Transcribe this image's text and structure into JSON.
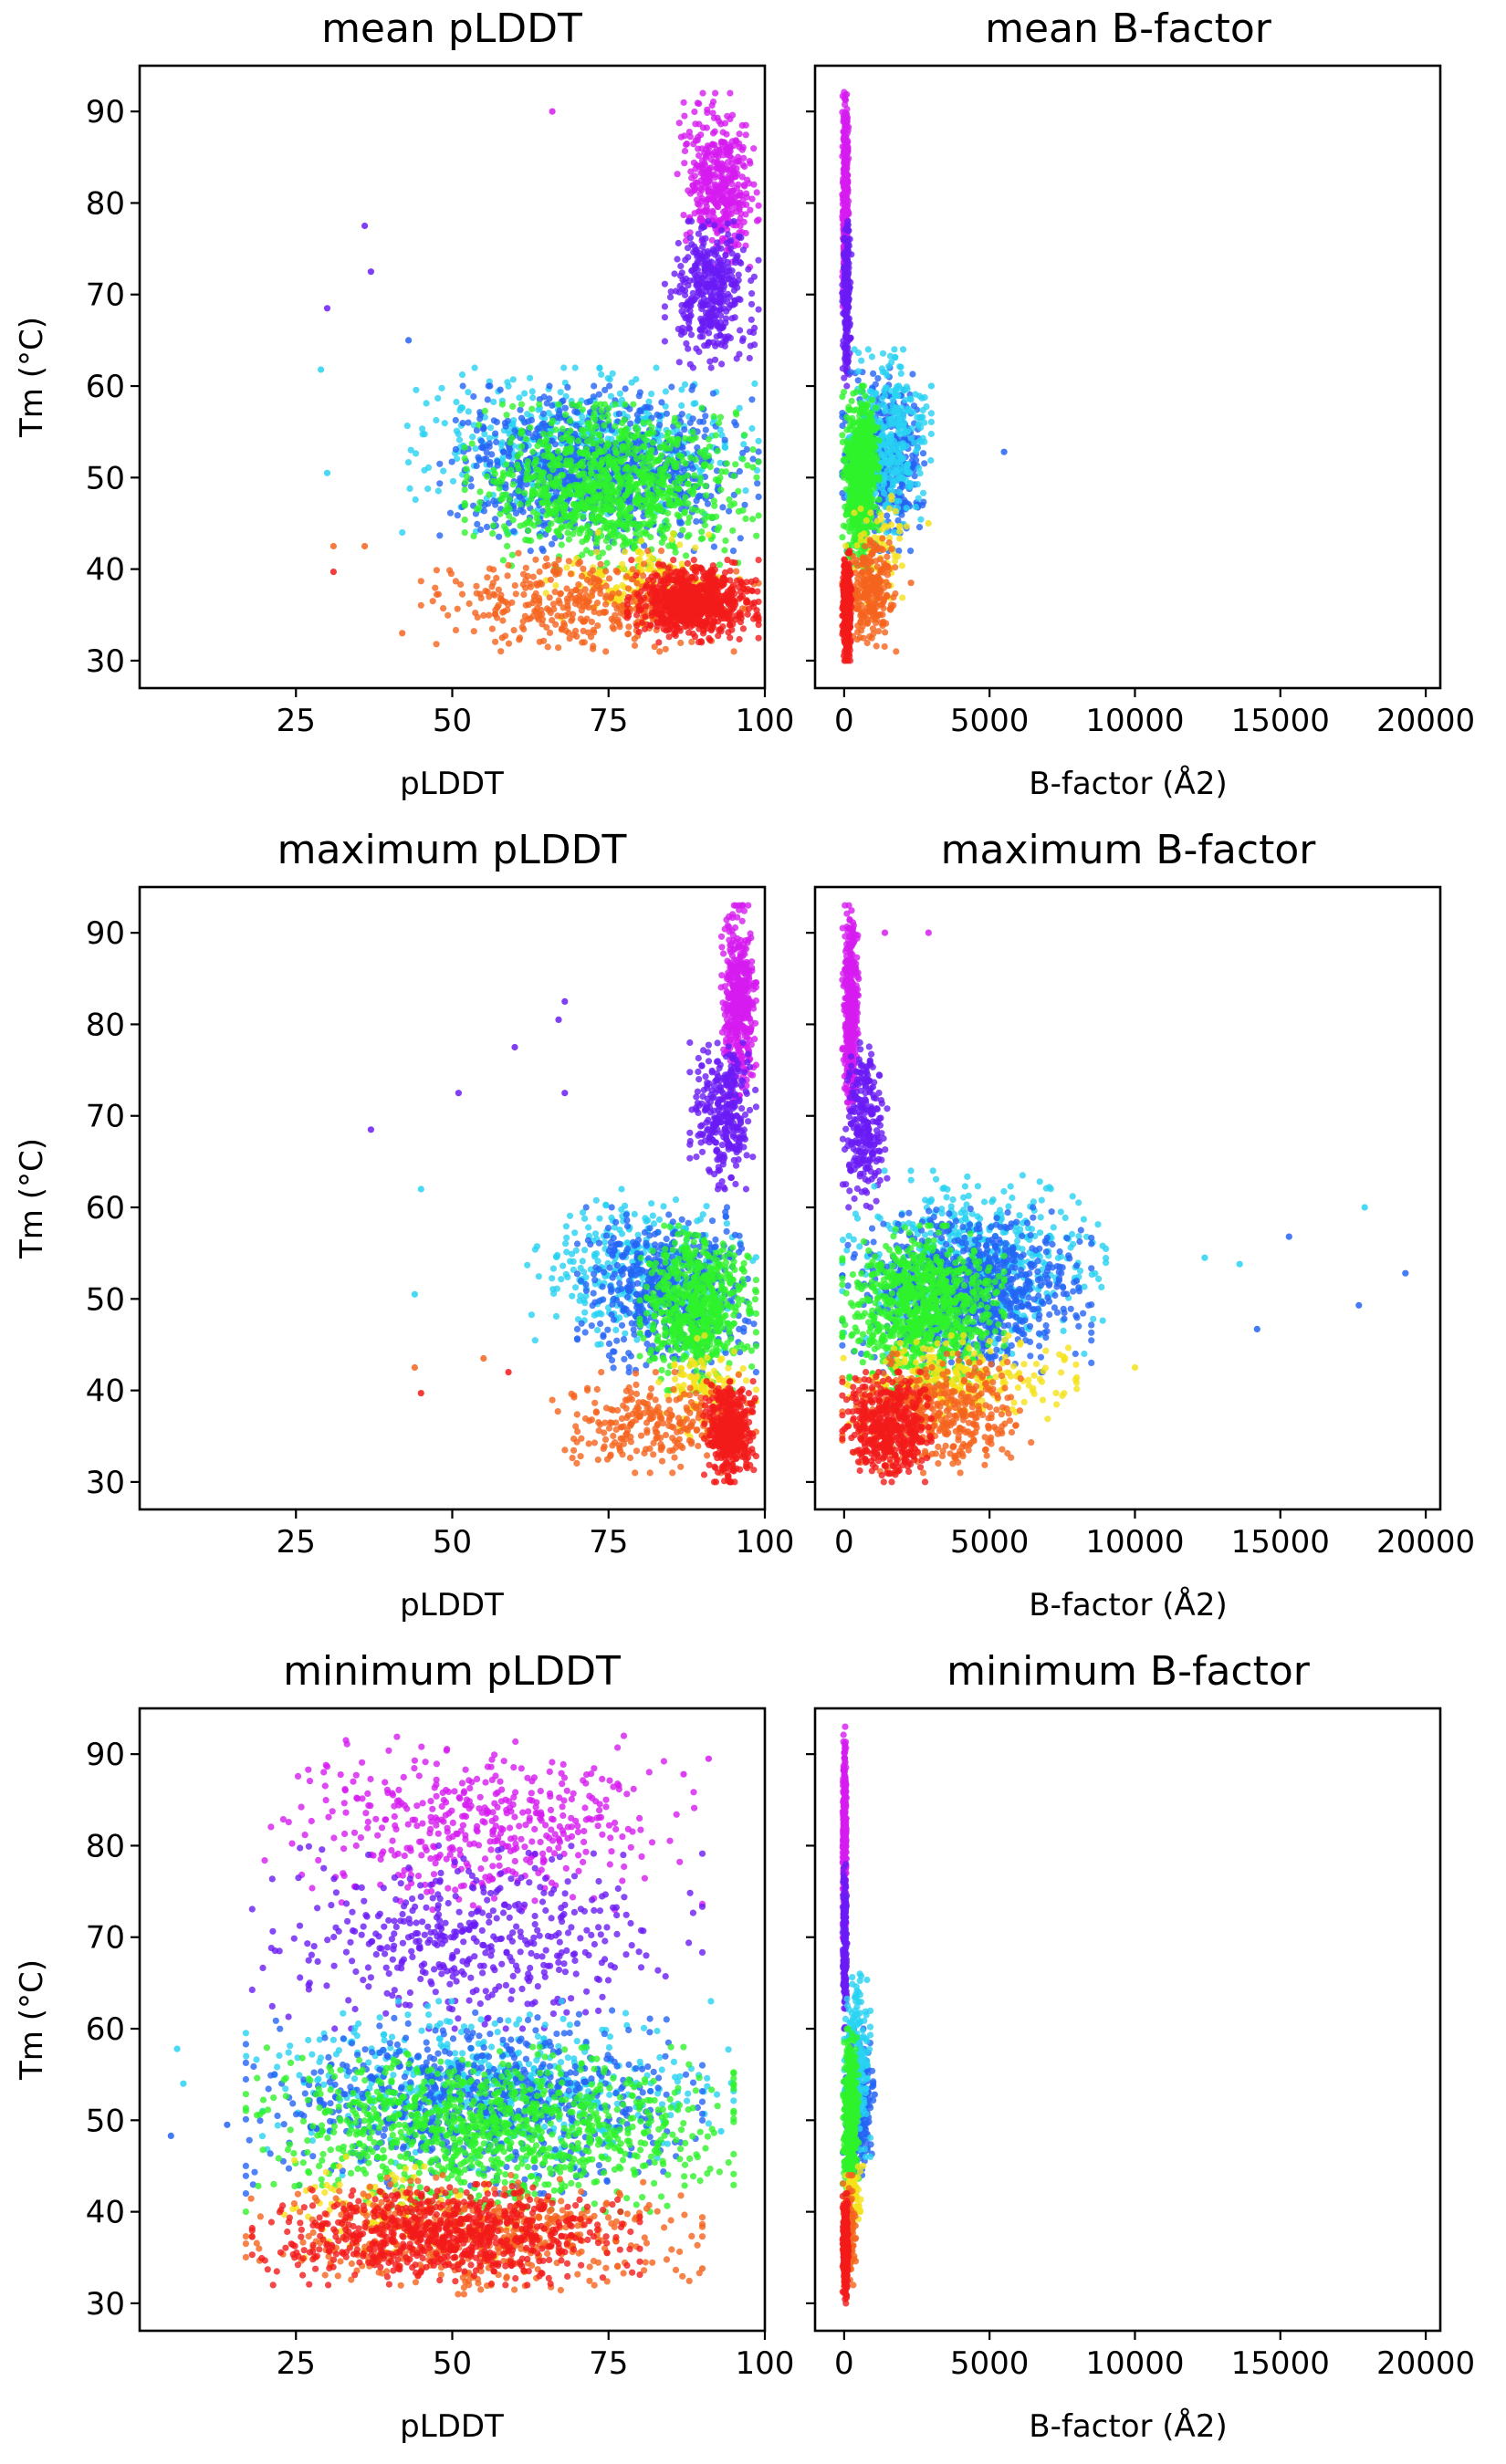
{
  "figure": {
    "colors": {
      "magenta": "#d61cf0",
      "violet": "#6a1cf5",
      "blue": "#2464f5",
      "cyan": "#28d2f2",
      "green": "#2ef22b",
      "yellow": "#f5e21a",
      "orange": "#f5641e",
      "red": "#f21a1a"
    }
  },
  "chart_data": [
    {
      "type": "scatter",
      "title": "mean pLDDT",
      "xlabel": "pLDDT",
      "ylabel": "Tm (°C)",
      "xlim": [
        0,
        100
      ],
      "ylim": [
        27,
        95
      ],
      "xticks": [
        25,
        50,
        75,
        100
      ],
      "yticks": [
        30,
        40,
        50,
        60,
        70,
        80,
        90
      ],
      "grid": false,
      "clusters": [
        {
          "color": "magenta",
          "count": 420,
          "x": [
            86,
            99
          ],
          "y": [
            73,
            92
          ]
        },
        {
          "color": "violet",
          "count": 380,
          "x": [
            84,
            99
          ],
          "y": [
            62,
            78
          ]
        },
        {
          "color": "cyan",
          "count": 500,
          "x": [
            42,
            99
          ],
          "y": [
            44,
            62
          ]
        },
        {
          "color": "blue",
          "count": 900,
          "x": [
            48,
            99
          ],
          "y": [
            42,
            60
          ]
        },
        {
          "color": "green",
          "count": 950,
          "x": [
            52,
            99
          ],
          "y": [
            40,
            58
          ]
        },
        {
          "color": "yellow",
          "count": 160,
          "x": [
            65,
            96
          ],
          "y": [
            34,
            44
          ]
        },
        {
          "color": "orange",
          "count": 420,
          "x": [
            45,
            99
          ],
          "y": [
            31,
            42
          ]
        },
        {
          "color": "red",
          "count": 750,
          "x": [
            78,
            99
          ],
          "y": [
            32,
            41
          ]
        }
      ],
      "outliers": [
        {
          "x": 30,
          "y": 68.5,
          "color": "violet"
        },
        {
          "x": 36,
          "y": 77.5,
          "color": "violet"
        },
        {
          "x": 37,
          "y": 72.5,
          "color": "violet"
        },
        {
          "x": 29,
          "y": 61.8,
          "color": "cyan"
        },
        {
          "x": 30,
          "y": 50.5,
          "color": "cyan"
        },
        {
          "x": 31,
          "y": 42.5,
          "color": "orange"
        },
        {
          "x": 31,
          "y": 39.7,
          "color": "red"
        },
        {
          "x": 36,
          "y": 42.5,
          "color": "orange"
        },
        {
          "x": 42,
          "y": 33,
          "color": "orange"
        },
        {
          "x": 43,
          "y": 65,
          "color": "blue"
        },
        {
          "x": 66,
          "y": 90,
          "color": "magenta"
        },
        {
          "x": 58,
          "y": 32.5,
          "color": "orange"
        }
      ]
    },
    {
      "type": "scatter",
      "title": "mean B-factor",
      "xlabel": "B-factor (Å2)",
      "ylabel": "",
      "xlim": [
        -1000,
        20500
      ],
      "ylim": [
        27,
        95
      ],
      "xticks": [
        0,
        5000,
        10000,
        15000,
        20000
      ],
      "yticks": [
        30,
        40,
        50,
        60,
        70,
        80,
        90
      ],
      "grid": false,
      "clusters": [
        {
          "color": "magenta",
          "count": 380,
          "x": [
            -60,
            150
          ],
          "y": [
            68,
            93
          ]
        },
        {
          "color": "violet",
          "count": 200,
          "x": [
            -60,
            250
          ],
          "y": [
            60,
            78
          ]
        },
        {
          "color": "blue",
          "count": 450,
          "x": [
            -60,
            2800
          ],
          "y": [
            42,
            62
          ]
        },
        {
          "color": "cyan",
          "count": 350,
          "x": [
            -60,
            3000
          ],
          "y": [
            44,
            64
          ]
        },
        {
          "color": "green",
          "count": 700,
          "x": [
            -60,
            1200
          ],
          "y": [
            40,
            60
          ]
        },
        {
          "color": "yellow",
          "count": 60,
          "x": [
            -60,
            2500
          ],
          "y": [
            36,
            48
          ]
        },
        {
          "color": "orange",
          "count": 250,
          "x": [
            -60,
            1800
          ],
          "y": [
            31,
            44
          ]
        },
        {
          "color": "red",
          "count": 420,
          "x": [
            -60,
            250
          ],
          "y": [
            30,
            42
          ]
        }
      ],
      "outliers": [
        {
          "x": 5500,
          "y": 52.8,
          "color": "blue"
        },
        {
          "x": 3000,
          "y": 60,
          "color": "cyan"
        },
        {
          "x": 2300,
          "y": 38.5,
          "color": "orange"
        },
        {
          "x": 2900,
          "y": 45,
          "color": "yellow"
        }
      ]
    },
    {
      "type": "scatter",
      "title": "maximum pLDDT",
      "xlabel": "pLDDT",
      "ylabel": "Tm (°C)",
      "xlim": [
        0,
        100
      ],
      "ylim": [
        27,
        95
      ],
      "xticks": [
        25,
        50,
        75,
        100
      ],
      "yticks": [
        30,
        40,
        50,
        60,
        70,
        80,
        90
      ],
      "grid": false,
      "clusters": [
        {
          "color": "magenta",
          "count": 420,
          "x": [
            93,
            98.6
          ],
          "y": [
            72,
            93
          ]
        },
        {
          "color": "violet",
          "count": 300,
          "x": [
            88,
            98.6
          ],
          "y": [
            62,
            78
          ]
        },
        {
          "color": "cyan",
          "count": 350,
          "x": [
            62,
            98.6
          ],
          "y": [
            44,
            62
          ]
        },
        {
          "color": "blue",
          "count": 550,
          "x": [
            70,
            98.6
          ],
          "y": [
            42,
            60
          ]
        },
        {
          "color": "green",
          "count": 600,
          "x": [
            80,
            98.6
          ],
          "y": [
            40,
            58
          ]
        },
        {
          "color": "yellow",
          "count": 100,
          "x": [
            82,
            98.6
          ],
          "y": [
            34,
            46
          ]
        },
        {
          "color": "orange",
          "count": 250,
          "x": [
            66,
            98.6
          ],
          "y": [
            31,
            42
          ]
        },
        {
          "color": "red",
          "count": 450,
          "x": [
            90,
            98.6
          ],
          "y": [
            30,
            41
          ]
        }
      ],
      "outliers": [
        {
          "x": 37,
          "y": 68.5,
          "color": "violet"
        },
        {
          "x": 45,
          "y": 62,
          "color": "cyan"
        },
        {
          "x": 44,
          "y": 50.5,
          "color": "cyan"
        },
        {
          "x": 44,
          "y": 42.5,
          "color": "orange"
        },
        {
          "x": 45,
          "y": 39.7,
          "color": "red"
        },
        {
          "x": 51,
          "y": 72.5,
          "color": "violet"
        },
        {
          "x": 60,
          "y": 77.5,
          "color": "violet"
        },
        {
          "x": 67,
          "y": 80.5,
          "color": "violet"
        },
        {
          "x": 68,
          "y": 82.5,
          "color": "violet"
        },
        {
          "x": 68,
          "y": 72.5,
          "color": "violet"
        },
        {
          "x": 55,
          "y": 43.5,
          "color": "orange"
        },
        {
          "x": 59,
          "y": 42,
          "color": "red"
        }
      ]
    },
    {
      "type": "scatter",
      "title": "maximum B-factor",
      "xlabel": "B-factor (Å2)",
      "ylabel": "",
      "xlim": [
        -1000,
        20500
      ],
      "ylim": [
        27,
        95
      ],
      "xticks": [
        0,
        5000,
        10000,
        15000,
        20000
      ],
      "yticks": [
        30,
        40,
        50,
        60,
        70,
        80,
        90
      ],
      "grid": false,
      "clusters": [
        {
          "color": "magenta",
          "count": 380,
          "x": [
            -60,
            500
          ],
          "y": [
            70,
            93
          ]
        },
        {
          "color": "violet",
          "count": 250,
          "x": [
            -60,
            1500
          ],
          "y": [
            60,
            78
          ]
        },
        {
          "color": "cyan",
          "count": 550,
          "x": [
            -60,
            9000
          ],
          "y": [
            44,
            64
          ]
        },
        {
          "color": "blue",
          "count": 850,
          "x": [
            -60,
            8500
          ],
          "y": [
            42,
            60
          ]
        },
        {
          "color": "green",
          "count": 850,
          "x": [
            -60,
            5500
          ],
          "y": [
            40,
            58
          ]
        },
        {
          "color": "yellow",
          "count": 250,
          "x": [
            -60,
            8000
          ],
          "y": [
            36,
            46
          ]
        },
        {
          "color": "orange",
          "count": 400,
          "x": [
            -60,
            6500
          ],
          "y": [
            31,
            44
          ]
        },
        {
          "color": "red",
          "count": 450,
          "x": [
            -60,
            3000
          ],
          "y": [
            30,
            42
          ]
        }
      ],
      "outliers": [
        {
          "x": 1400,
          "y": 90,
          "color": "magenta"
        },
        {
          "x": 2900,
          "y": 90,
          "color": "magenta"
        },
        {
          "x": 14200,
          "y": 46.7,
          "color": "blue"
        },
        {
          "x": 15300,
          "y": 56.8,
          "color": "blue"
        },
        {
          "x": 17700,
          "y": 49.3,
          "color": "blue"
        },
        {
          "x": 17900,
          "y": 60,
          "color": "cyan"
        },
        {
          "x": 19300,
          "y": 52.8,
          "color": "blue"
        },
        {
          "x": 10000,
          "y": 42.5,
          "color": "yellow"
        },
        {
          "x": 12400,
          "y": 54.5,
          "color": "cyan"
        },
        {
          "x": 13600,
          "y": 53.8,
          "color": "cyan"
        }
      ]
    },
    {
      "type": "scatter",
      "title": "minimum pLDDT",
      "xlabel": "pLDDT",
      "ylabel": "Tm (°C)",
      "xlim": [
        0,
        100
      ],
      "ylim": [
        27,
        95
      ],
      "xticks": [
        25,
        50,
        75,
        100
      ],
      "yticks": [
        30,
        40,
        50,
        60,
        70,
        80,
        90
      ],
      "grid": false,
      "clusters": [
        {
          "color": "magenta",
          "count": 450,
          "x": [
            20,
            90
          ],
          "y": [
            73,
            92
          ]
        },
        {
          "color": "violet",
          "count": 450,
          "x": [
            18,
            90
          ],
          "y": [
            60,
            80
          ]
        },
        {
          "color": "cyan",
          "count": 550,
          "x": [
            17,
            95
          ],
          "y": [
            44,
            63
          ]
        },
        {
          "color": "blue",
          "count": 750,
          "x": [
            17,
            90
          ],
          "y": [
            42,
            62
          ]
        },
        {
          "color": "green",
          "count": 1000,
          "x": [
            17,
            95
          ],
          "y": [
            40,
            58
          ]
        },
        {
          "color": "yellow",
          "count": 100,
          "x": [
            18,
            60
          ],
          "y": [
            35,
            46
          ]
        },
        {
          "color": "orange",
          "count": 500,
          "x": [
            17,
            90
          ],
          "y": [
            31,
            44
          ]
        },
        {
          "color": "red",
          "count": 750,
          "x": [
            18,
            80
          ],
          "y": [
            32,
            43
          ]
        }
      ],
      "outliers": [
        {
          "x": 5,
          "y": 48.3,
          "color": "blue"
        },
        {
          "x": 6,
          "y": 57.8,
          "color": "cyan"
        },
        {
          "x": 7,
          "y": 54,
          "color": "cyan"
        },
        {
          "x": 14,
          "y": 49.5,
          "color": "blue"
        },
        {
          "x": 90,
          "y": 33.8,
          "color": "orange"
        },
        {
          "x": 91,
          "y": 89.5,
          "color": "magenta"
        },
        {
          "x": 87,
          "y": 87.8,
          "color": "magenta"
        },
        {
          "x": 93,
          "y": 48.8,
          "color": "cyan"
        }
      ]
    },
    {
      "type": "scatter",
      "title": "minimum B-factor",
      "xlabel": "B-factor (Å2)",
      "ylabel": "",
      "xlim": [
        -1000,
        20500
      ],
      "ylim": [
        27,
        95
      ],
      "xticks": [
        0,
        5000,
        10000,
        15000,
        20000
      ],
      "yticks": [
        30,
        40,
        50,
        60,
        70,
        80,
        90
      ],
      "grid": false,
      "clusters": [
        {
          "color": "magenta",
          "count": 380,
          "x": [
            -50,
            80
          ],
          "y": [
            68,
            93
          ]
        },
        {
          "color": "violet",
          "count": 180,
          "x": [
            -50,
            100
          ],
          "y": [
            60,
            78
          ]
        },
        {
          "color": "blue",
          "count": 260,
          "x": [
            -50,
            1000
          ],
          "y": [
            44,
            60
          ]
        },
        {
          "color": "cyan",
          "count": 200,
          "x": [
            -50,
            900
          ],
          "y": [
            46,
            66
          ]
        },
        {
          "color": "green",
          "count": 400,
          "x": [
            -50,
            500
          ],
          "y": [
            40,
            60
          ]
        },
        {
          "color": "yellow",
          "count": 60,
          "x": [
            -50,
            700
          ],
          "y": [
            38,
            46
          ]
        },
        {
          "color": "orange",
          "count": 120,
          "x": [
            -50,
            400
          ],
          "y": [
            32,
            44
          ]
        },
        {
          "color": "red",
          "count": 300,
          "x": [
            -50,
            150
          ],
          "y": [
            30,
            42
          ]
        }
      ],
      "outliers": [
        {
          "x": 1050,
          "y": 52.8,
          "color": "blue"
        },
        {
          "x": 800,
          "y": 56,
          "color": "cyan"
        },
        {
          "x": 650,
          "y": 45,
          "color": "yellow"
        }
      ]
    }
  ]
}
